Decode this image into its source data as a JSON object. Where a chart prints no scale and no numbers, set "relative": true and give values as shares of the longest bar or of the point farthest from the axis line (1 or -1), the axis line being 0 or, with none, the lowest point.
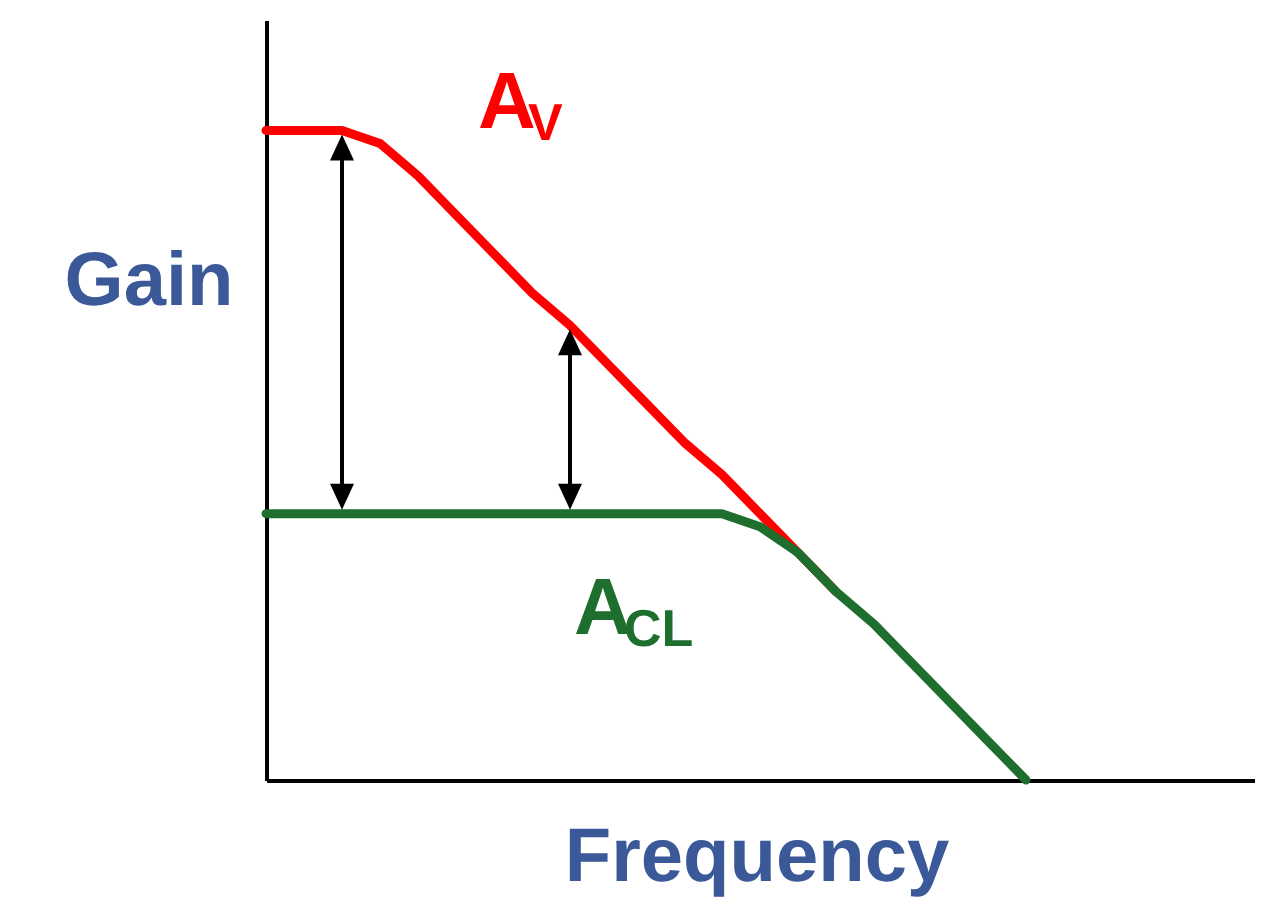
{
  "chart_data": {
    "type": "line",
    "relative": true,
    "xlabel": "Frequency",
    "ylabel": "Gain",
    "categories": [
      null,
      null,
      null,
      null,
      null,
      null,
      null,
      null,
      null,
      null,
      null,
      null,
      null,
      null,
      null,
      null,
      null,
      null,
      null,
      null,
      null,
      null,
      null,
      null,
      null,
      null,
      null
    ],
    "series": [
      {
        "name": "A$_{V}$",
        "color": "#ff0000",
        "values": [
          1.0,
          1.0,
          1.0,
          0.98,
          0.93,
          0.87,
          0.81,
          0.75,
          0.7,
          0.64,
          0.58,
          0.52,
          0.47,
          0.41,
          0.35,
          0.29,
          null,
          null,
          null,
          null,
          null,
          null,
          null,
          null,
          null,
          null,
          null
        ]
      },
      {
        "name": "A$_{CL}$",
        "color": "#1e6e2e",
        "values": [
          0.41,
          0.41,
          0.41,
          0.41,
          0.41,
          0.41,
          0.41,
          0.41,
          0.41,
          0.41,
          0.41,
          0.41,
          0.41,
          0.39,
          0.35,
          0.29,
          0.24,
          0.18,
          0.12,
          0.06,
          0.0,
          null,
          null,
          null,
          null,
          null,
          null
        ]
      }
    ],
    "grid": false,
    "marker": "none",
    "line_style": "solid"
  }
}
